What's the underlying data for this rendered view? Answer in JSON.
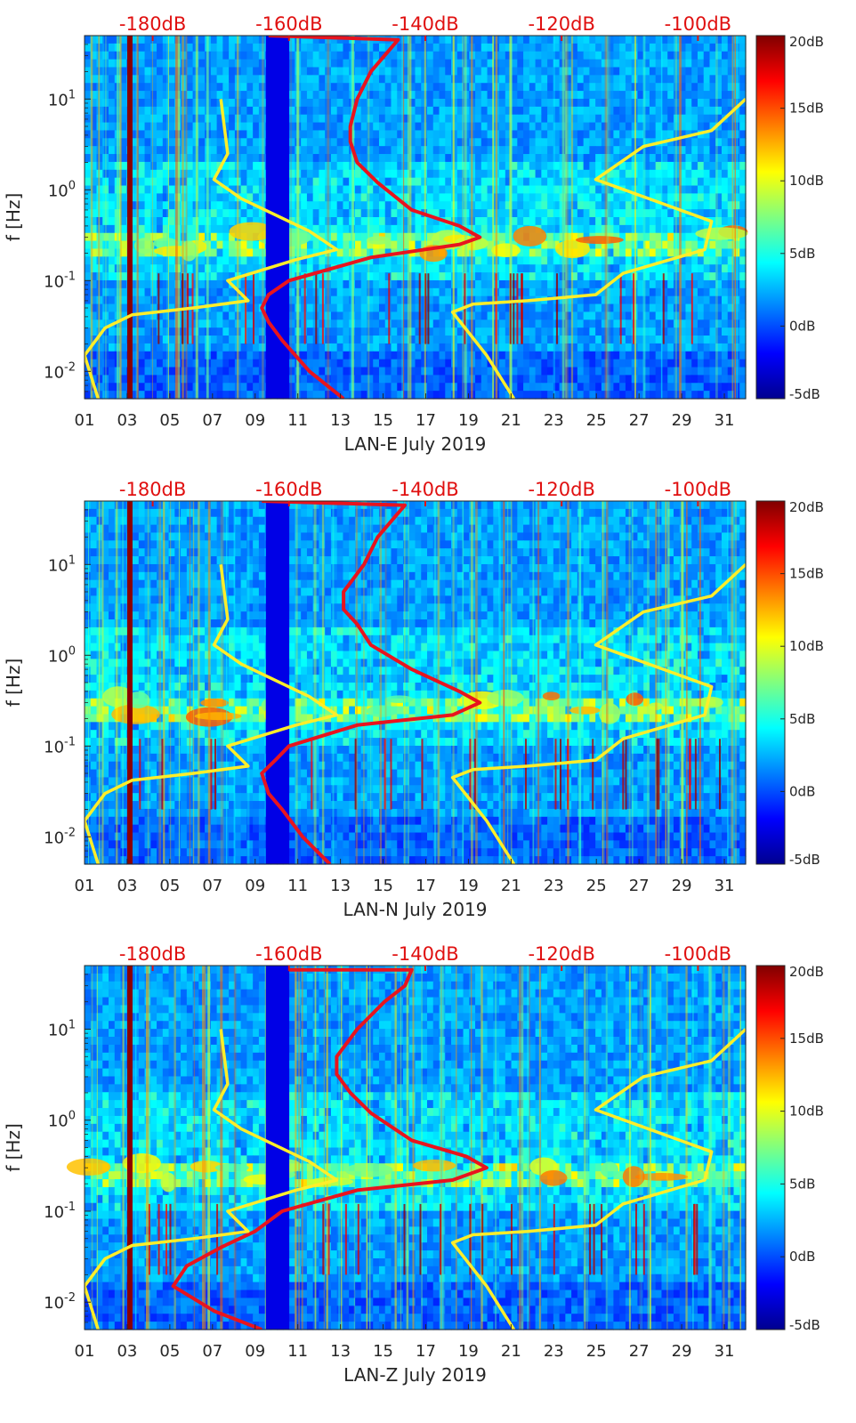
{
  "colors": {
    "model_curve": "#e8141e",
    "reference_curve": "#ffee2a",
    "top_axis_text": "#e01010"
  },
  "chart_data": [
    {
      "type": "heatmap",
      "component": "E",
      "xlabel": "LAN-E July 2019",
      "ylabel": "f [Hz]",
      "x_ticks": [
        "01",
        "03",
        "05",
        "07",
        "09",
        "11",
        "13",
        "15",
        "17",
        "19",
        "21",
        "23",
        "25",
        "27",
        "29",
        "31"
      ],
      "x_range_days": [
        1,
        32
      ],
      "y_scale": "log",
      "y_range_hz": [
        0.005,
        50
      ],
      "y_ticks": [
        "10-2",
        "10-1",
        "100",
        "101"
      ],
      "top_axis_labels": [
        "-180dB",
        "-160dB",
        "-140dB",
        "-120dB",
        "-100dB"
      ],
      "top_axis_range_db": [
        -190,
        -93
      ],
      "colorbar_ticks": [
        "20dB",
        "15dB",
        "10dB",
        "5dB",
        "0dB",
        "-5dB"
      ],
      "colorbar_range_db": [
        -5,
        20
      ],
      "series": [
        {
          "name": "red curve",
          "points": [
            [
              -163,
              50
            ],
            [
              -144,
              45
            ],
            [
              -148,
              20
            ],
            [
              -150,
              10
            ],
            [
              -151,
              5
            ],
            [
              -151,
              3.4
            ],
            [
              -150,
              2
            ],
            [
              -147,
              1.2
            ],
            [
              -142,
              0.6
            ],
            [
              -135,
              0.4
            ],
            [
              -132,
              0.3
            ],
            [
              -135,
              0.25
            ],
            [
              -148,
              0.18
            ],
            [
              -160,
              0.1
            ],
            [
              -163,
              0.07
            ],
            [
              -164,
              0.05
            ],
            [
              -163,
              0.035
            ],
            [
              -161,
              0.022
            ],
            [
              -157,
              0.01
            ],
            [
              -152,
              0.005
            ]
          ]
        },
        {
          "name": "yellow left curve",
          "points": [
            [
              -170,
              10
            ],
            [
              -169,
              2.5
            ],
            [
              -171,
              1.3
            ],
            [
              -167,
              0.8
            ],
            [
              -157,
              0.35
            ],
            [
              -153,
              0.22
            ],
            [
              -159,
              0.17
            ],
            [
              -169,
              0.1
            ],
            [
              -166,
              0.06
            ],
            [
              -174,
              0.05
            ],
            [
              -183,
              0.042
            ],
            [
              -187,
              0.03
            ],
            [
              -190,
              0.015
            ],
            [
              -188,
              0.005
            ]
          ]
        },
        {
          "name": "yellow right curve",
          "points": [
            [
              -93,
              10
            ],
            [
              -98,
              4.5
            ],
            [
              -108,
              3
            ],
            [
              -115,
              1.3
            ],
            [
              -98,
              0.45
            ],
            [
              -99,
              0.22
            ],
            [
              -103,
              0.18
            ],
            [
              -111,
              0.12
            ],
            [
              -115,
              0.07
            ],
            [
              -125,
              0.06
            ],
            [
              -133,
              0.055
            ],
            [
              -136,
              0.045
            ],
            [
              -131,
              0.015
            ],
            [
              -127,
              0.005
            ]
          ]
        }
      ]
    },
    {
      "type": "heatmap",
      "component": "N",
      "xlabel": "LAN-N July 2019",
      "ylabel": "f [Hz]",
      "x_ticks": [
        "01",
        "03",
        "05",
        "07",
        "09",
        "11",
        "13",
        "15",
        "17",
        "19",
        "21",
        "23",
        "25",
        "27",
        "29",
        "31"
      ],
      "x_range_days": [
        1,
        32
      ],
      "y_scale": "log",
      "y_range_hz": [
        0.005,
        50
      ],
      "y_ticks": [
        "10-2",
        "10-1",
        "100",
        "101"
      ],
      "top_axis_labels": [
        "-180dB",
        "-160dB",
        "-140dB",
        "-120dB",
        "-100dB"
      ],
      "top_axis_range_db": [
        -190,
        -93
      ],
      "colorbar_ticks": [
        "20dB",
        "15dB",
        "10dB",
        "5dB",
        "0dB",
        "-5dB"
      ],
      "colorbar_range_db": [
        -5,
        20
      ],
      "series": [
        {
          "name": "red curve",
          "points": [
            [
              -164,
              50
            ],
            [
              -143,
              45
            ],
            [
              -147,
              20
            ],
            [
              -149,
              10
            ],
            [
              -152,
              5
            ],
            [
              -152,
              3.2
            ],
            [
              -150,
              2.2
            ],
            [
              -148,
              1.3
            ],
            [
              -142,
              0.7
            ],
            [
              -135,
              0.4
            ],
            [
              -132,
              0.3
            ],
            [
              -136,
              0.22
            ],
            [
              -150,
              0.17
            ],
            [
              -160,
              0.1
            ],
            [
              -162,
              0.07
            ],
            [
              -164,
              0.05
            ],
            [
              -163,
              0.03
            ],
            [
              -161,
              0.02
            ],
            [
              -158,
              0.01
            ],
            [
              -154,
              0.005
            ]
          ]
        },
        {
          "name": "yellow left curve",
          "points": [
            [
              -170,
              10
            ],
            [
              -169,
              2.5
            ],
            [
              -171,
              1.3
            ],
            [
              -167,
              0.8
            ],
            [
              -157,
              0.35
            ],
            [
              -153,
              0.22
            ],
            [
              -159,
              0.17
            ],
            [
              -169,
              0.1
            ],
            [
              -166,
              0.06
            ],
            [
              -174,
              0.05
            ],
            [
              -183,
              0.042
            ],
            [
              -187,
              0.03
            ],
            [
              -190,
              0.015
            ],
            [
              -188,
              0.005
            ]
          ]
        },
        {
          "name": "yellow right curve",
          "points": [
            [
              -93,
              10
            ],
            [
              -98,
              4.5
            ],
            [
              -108,
              3
            ],
            [
              -115,
              1.3
            ],
            [
              -98,
              0.45
            ],
            [
              -99,
              0.22
            ],
            [
              -103,
              0.18
            ],
            [
              -111,
              0.12
            ],
            [
              -115,
              0.07
            ],
            [
              -125,
              0.06
            ],
            [
              -133,
              0.055
            ],
            [
              -136,
              0.045
            ],
            [
              -131,
              0.015
            ],
            [
              -127,
              0.005
            ]
          ]
        }
      ]
    },
    {
      "type": "heatmap",
      "component": "Z",
      "xlabel": "LAN-Z July 2019",
      "ylabel": "f [Hz]",
      "x_ticks": [
        "01",
        "03",
        "05",
        "07",
        "09",
        "11",
        "13",
        "15",
        "17",
        "19",
        "21",
        "23",
        "25",
        "27",
        "29",
        "31"
      ],
      "x_range_days": [
        1,
        32
      ],
      "y_scale": "log",
      "y_range_hz": [
        0.005,
        50
      ],
      "y_ticks": [
        "10-2",
        "10-1",
        "100",
        "101"
      ],
      "top_axis_labels": [
        "-180dB",
        "-160dB",
        "-140dB",
        "-120dB",
        "-100dB"
      ],
      "top_axis_range_db": [
        -190,
        -93
      ],
      "colorbar_ticks": [
        "20dB",
        "15dB",
        "10dB",
        "5dB",
        "0dB",
        "-5dB"
      ],
      "colorbar_range_db": [
        -5,
        20
      ],
      "series": [
        {
          "name": "red curve",
          "points": [
            [
              -160,
              45
            ],
            [
              -142,
              45
            ],
            [
              -143,
              30
            ],
            [
              -146,
              20
            ],
            [
              -150,
              10
            ],
            [
              -153,
              5
            ],
            [
              -153,
              3.2
            ],
            [
              -151,
              2
            ],
            [
              -148,
              1.2
            ],
            [
              -142,
              0.6
            ],
            [
              -134,
              0.4
            ],
            [
              -131,
              0.3
            ],
            [
              -136,
              0.22
            ],
            [
              -150,
              0.17
            ],
            [
              -161,
              0.1
            ],
            [
              -165,
              0.06
            ],
            [
              -170,
              0.04
            ],
            [
              -175,
              0.025
            ],
            [
              -177,
              0.015
            ],
            [
              -171,
              0.008
            ],
            [
              -164,
              0.005
            ]
          ]
        },
        {
          "name": "yellow left curve",
          "points": [
            [
              -170,
              10
            ],
            [
              -169,
              2.5
            ],
            [
              -171,
              1.3
            ],
            [
              -167,
              0.8
            ],
            [
              -157,
              0.35
            ],
            [
              -153,
              0.22
            ],
            [
              -159,
              0.17
            ],
            [
              -169,
              0.1
            ],
            [
              -166,
              0.06
            ],
            [
              -174,
              0.05
            ],
            [
              -183,
              0.042
            ],
            [
              -187,
              0.03
            ],
            [
              -190,
              0.015
            ],
            [
              -188,
              0.005
            ]
          ]
        },
        {
          "name": "yellow right curve",
          "points": [
            [
              -93,
              10
            ],
            [
              -98,
              4.5
            ],
            [
              -108,
              3
            ],
            [
              -115,
              1.3
            ],
            [
              -98,
              0.45
            ],
            [
              -99,
              0.22
            ],
            [
              -103,
              0.18
            ],
            [
              -111,
              0.12
            ],
            [
              -115,
              0.07
            ],
            [
              -125,
              0.06
            ],
            [
              -133,
              0.055
            ],
            [
              -136,
              0.045
            ],
            [
              -131,
              0.015
            ],
            [
              -127,
              0.005
            ]
          ]
        }
      ]
    }
  ]
}
